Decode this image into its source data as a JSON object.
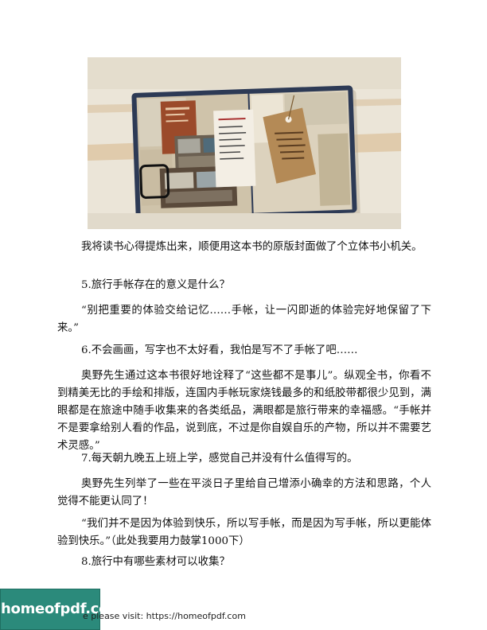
{
  "photo": {
    "description_icon": "scrapbook-photo",
    "accent": "#a0522d"
  },
  "paragraphs": [
    "我将读书心得提炼出来，顺便用这本书的原版封面做了个立体书小机关。",
    "5.旅行手帐存在的意义是什么？",
    "“别把重要的体验交给记忆……手帐，让一闪即逝的体验完好地保留了下来。”",
    "6.不会画画，写字也不太好看，我怕是写不了手帐了吧……",
    "奥野先生通过这本书很好地诠释了“这些都不是事儿”。纵观全书，你看不到精美无比的手绘和排版，连国内手帐玩家烧钱最多的和纸胶带都很少见到，满眼都是在旅途中随手收集来的各类纸品，满眼都是旅行带来的幸福感。“手帐并不是要拿给别人看的作品，说到底，不过是你自娱自乐的产物，所以并不需要艺术灵感。”",
    "7.每天朝九晚五上班上学，感觉自己并没有什么值得写的。",
    "奥野先生列举了一些在平淡日子里给自己增添小确幸的方法和思路，个人觉得不能更认同了！",
    "“我们并不是因为体验到快乐，所以写手帐，而是因为写手帐，所以更能体验到快乐。”（此处我要用力鼓掌1000下）",
    "8.旅行中有哪些素材可以收集？"
  ],
  "footer": {
    "logo": "homeofpdf.com",
    "text": "e please visit: https://homeofpdf.com"
  }
}
